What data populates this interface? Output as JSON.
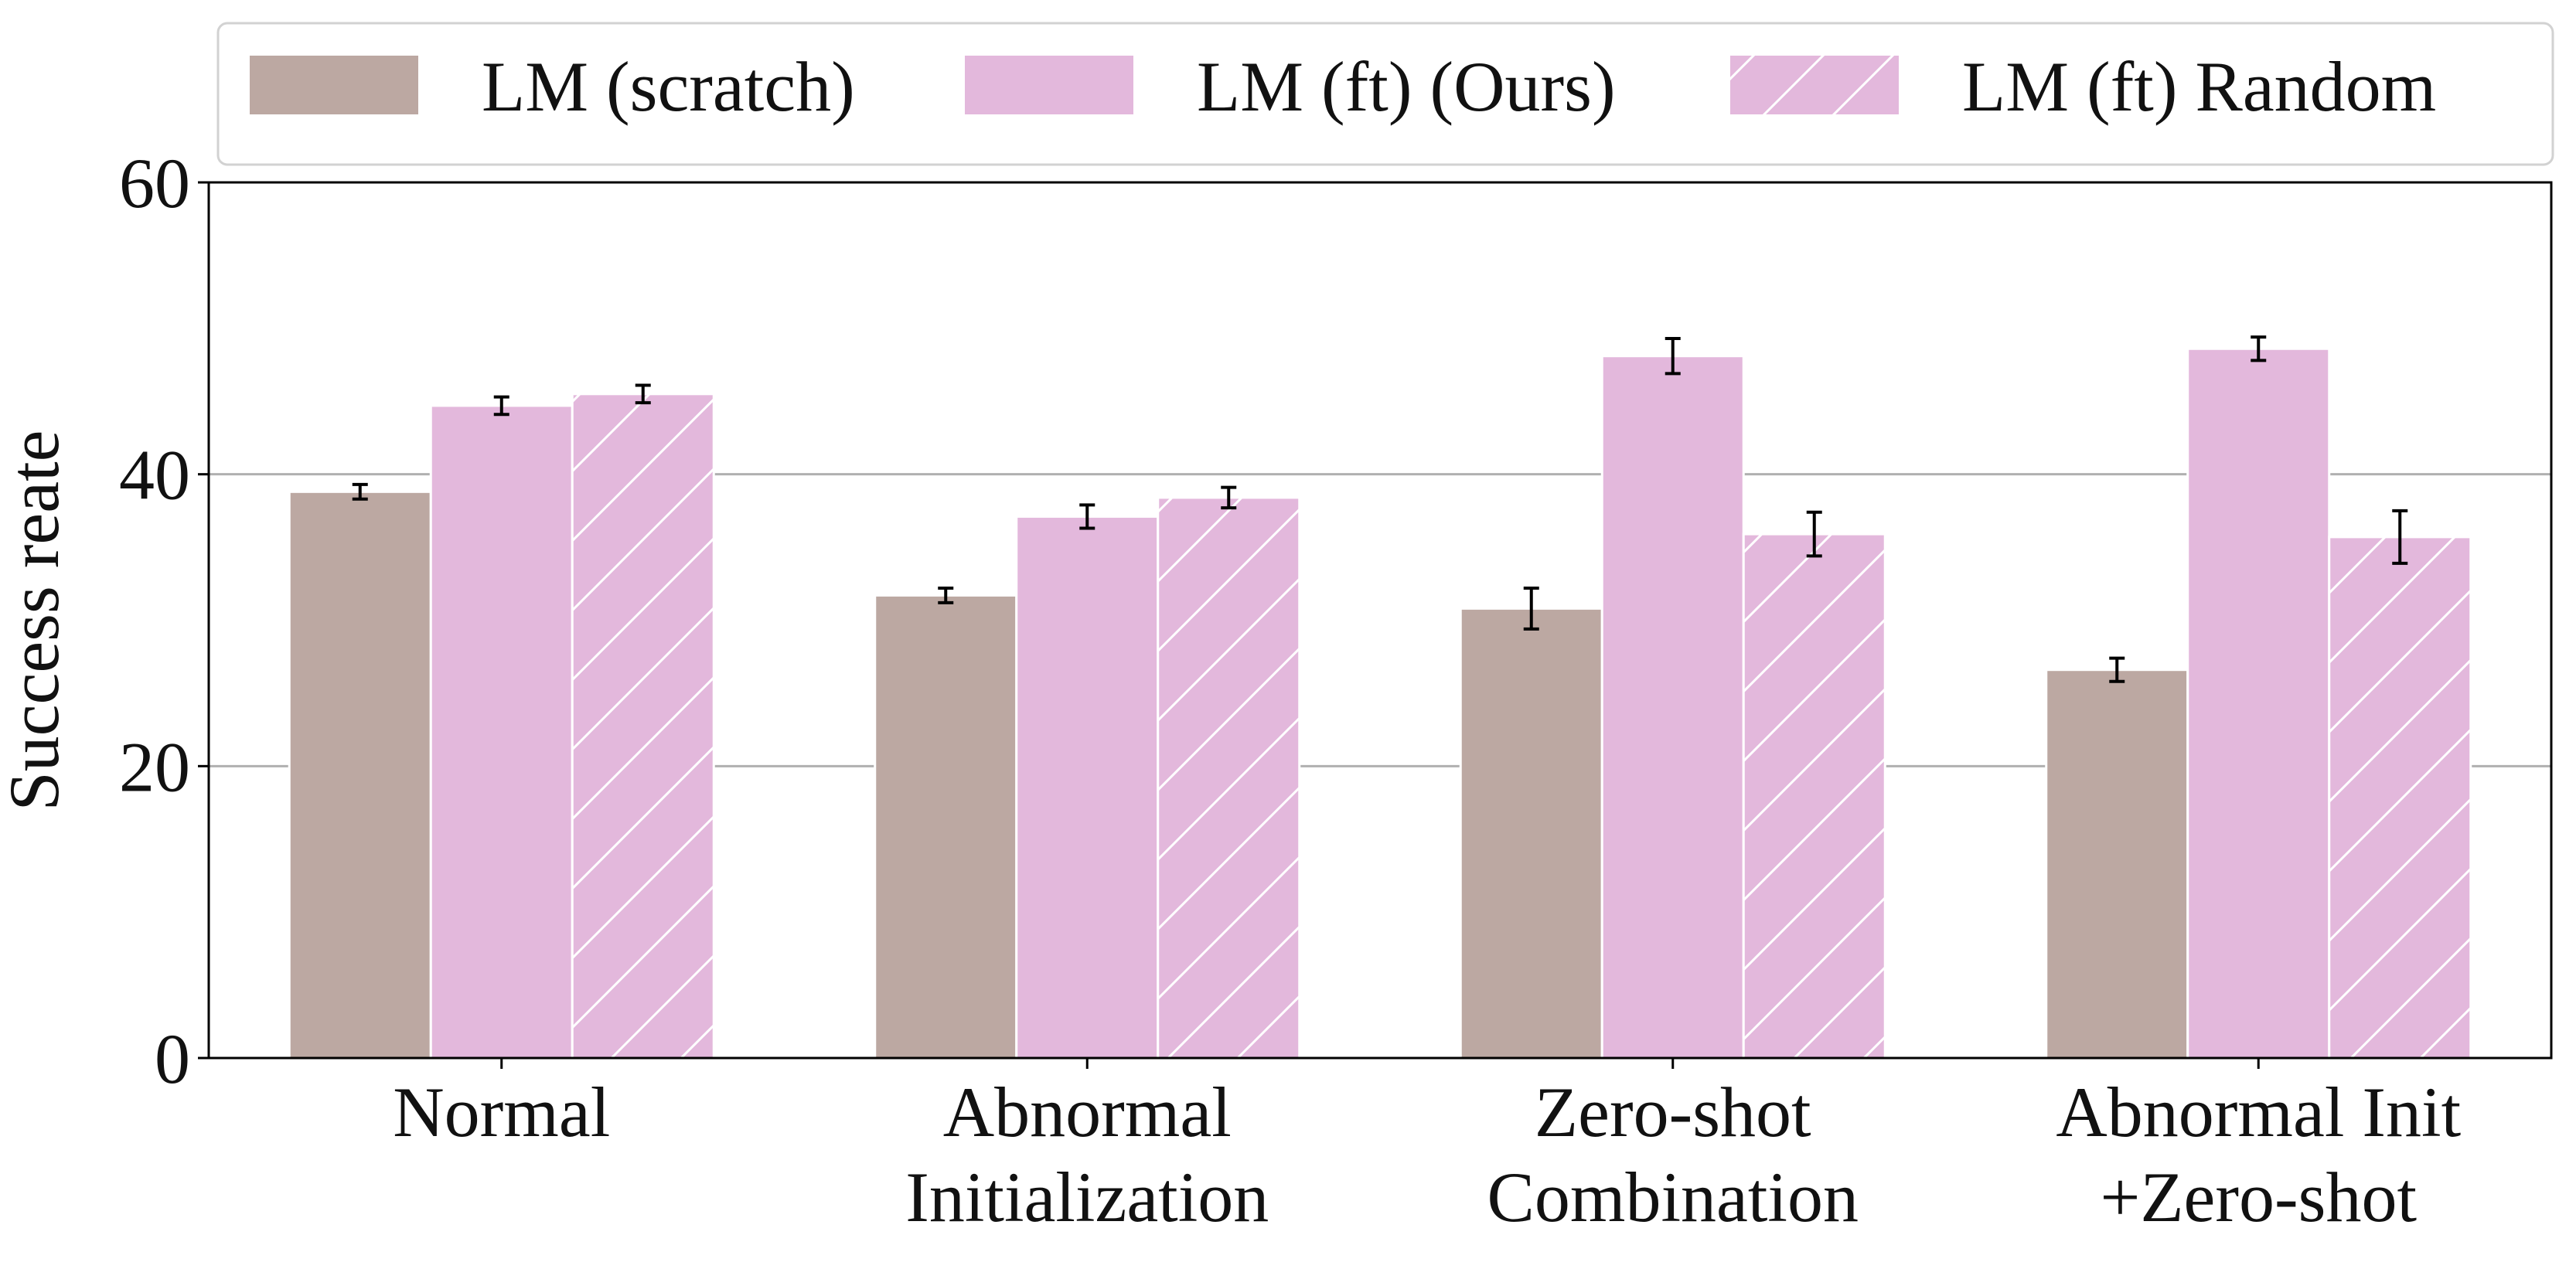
{
  "chart_data": {
    "type": "bar",
    "categories": [
      [
        "Normal"
      ],
      [
        "Abnormal",
        "Initialization"
      ],
      [
        "Zero-shot",
        "Combination"
      ],
      [
        "Abnormal Init",
        "+Zero-shot"
      ]
    ],
    "series": [
      {
        "name": "LM (scratch)",
        "color": "#bca8a2",
        "hatch": false,
        "values": [
          38.8,
          31.7,
          30.8,
          26.6
        ],
        "errors": [
          0.5,
          0.5,
          1.4,
          0.8
        ]
      },
      {
        "name": "LM (ft) (Ours)",
        "color": "#e3b8dc",
        "hatch": false,
        "values": [
          44.7,
          37.1,
          48.1,
          48.6
        ],
        "errors": [
          0.6,
          0.8,
          1.2,
          0.8
        ]
      },
      {
        "name": "LM (ft) Random",
        "color": "#e3b8dc",
        "hatch": true,
        "values": [
          45.5,
          38.4,
          35.9,
          35.7
        ],
        "errors": [
          0.6,
          0.7,
          1.5,
          1.8
        ]
      }
    ],
    "xlabel": "",
    "ylabel": "Success reate",
    "ylim": [
      0,
      60
    ],
    "yticks": [
      0,
      20,
      40,
      60
    ],
    "grid": "horizontal",
    "legend_position": "top"
  }
}
